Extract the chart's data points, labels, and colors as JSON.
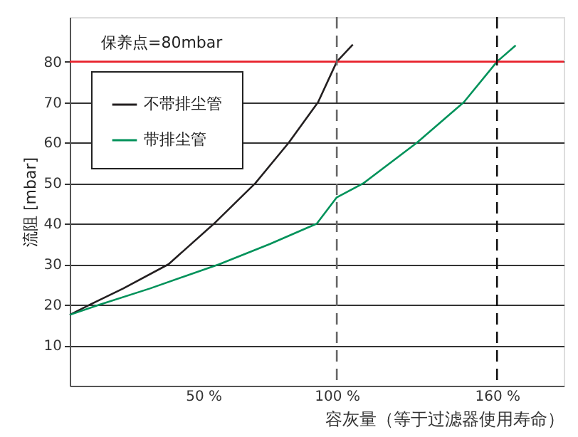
{
  "chart_data": {
    "type": "line",
    "xlabel": "容灰量（等于过滤器使用寿命）",
    "ylabel": "流阻 [mbar]",
    "xlim": [
      0,
      185
    ],
    "ylim": [
      0,
      91
    ],
    "xticks": [
      {
        "value": 50,
        "label": "50 %"
      },
      {
        "value": 100,
        "label": "100 %"
      },
      {
        "value": 160,
        "label": "160 %"
      }
    ],
    "yticks": [
      10,
      20,
      30,
      40,
      50,
      60,
      70,
      80
    ],
    "grid": "y",
    "legend": "top left",
    "marker": "none",
    "line_style": "solid",
    "series": [
      {
        "name": "不带排尘管",
        "color": "#231f20",
        "x": [
          0,
          7.5,
          20,
          37,
          54,
          69.5,
          82,
          93,
          100,
          106
        ],
        "values": [
          17.5,
          20,
          24,
          30,
          40,
          50,
          60,
          70,
          80,
          84.2
        ]
      },
      {
        "name": "带排尘管",
        "color": "#00925a",
        "x": [
          0,
          11,
          30,
          56,
          75,
          92.5,
          100,
          110,
          130,
          147.6,
          160,
          167
        ],
        "values": [
          17.5,
          20,
          24,
          30,
          35,
          40,
          46.5,
          50,
          60,
          70,
          80,
          84
        ]
      }
    ],
    "ref_lines": [
      {
        "axis": "y",
        "value": 80,
        "label": "保养点=80mbar",
        "color": "#e8212b",
        "line_style": "solid"
      },
      {
        "axis": "x",
        "value": 100,
        "label": null,
        "color": "#666666",
        "line_style": "dashed"
      },
      {
        "axis": "x",
        "value": 160,
        "label": null,
        "color": "#111111",
        "line_style": "dashed"
      }
    ]
  }
}
